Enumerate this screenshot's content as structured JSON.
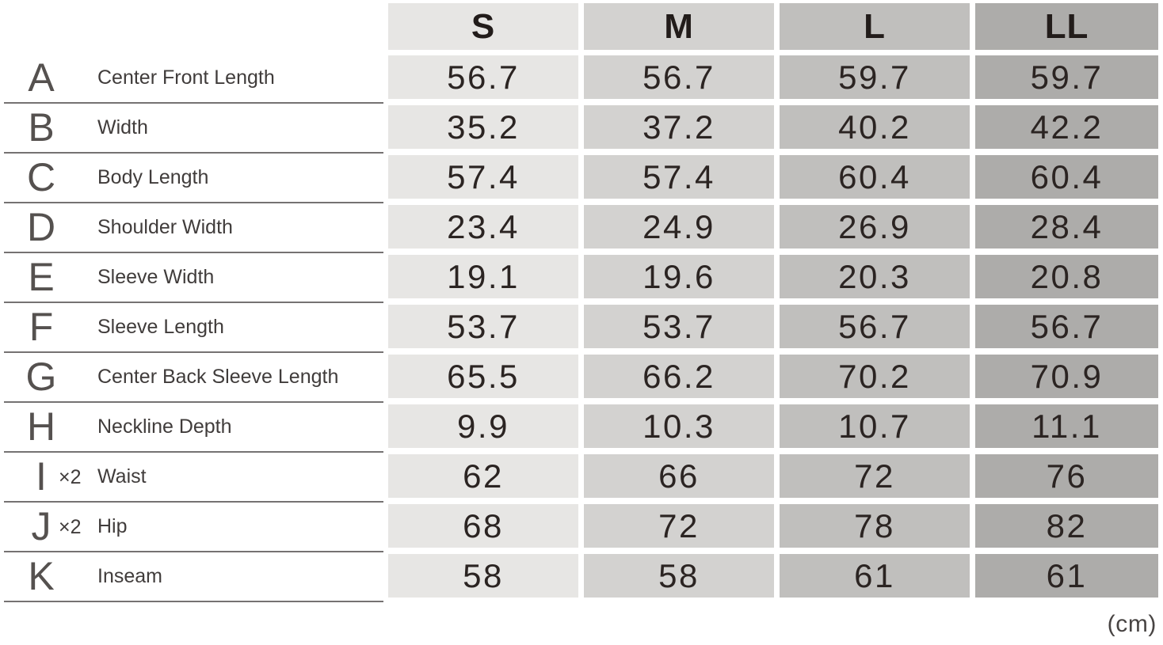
{
  "unit_label": "(cm)",
  "columns": [
    {
      "label": "S",
      "bg": "#e7e6e4"
    },
    {
      "label": "M",
      "bg": "#d3d2d0"
    },
    {
      "label": "L",
      "bg": "#c0bfbd"
    },
    {
      "label": "LL",
      "bg": "#adacaa"
    }
  ],
  "rows": [
    {
      "letter": "A",
      "note": "",
      "label": "Center Front Length",
      "values": [
        "56.7",
        "56.7",
        "59.7",
        "59.7"
      ]
    },
    {
      "letter": "B",
      "note": "",
      "label": "Width",
      "values": [
        "35.2",
        "37.2",
        "40.2",
        "42.2"
      ]
    },
    {
      "letter": "C",
      "note": "",
      "label": "Body Length",
      "values": [
        "57.4",
        "57.4",
        "60.4",
        "60.4"
      ]
    },
    {
      "letter": "D",
      "note": "",
      "label": "Shoulder Width",
      "values": [
        "23.4",
        "24.9",
        "26.9",
        "28.4"
      ]
    },
    {
      "letter": "E",
      "note": "",
      "label": "Sleeve Width",
      "values": [
        "19.1",
        "19.6",
        "20.3",
        "20.8"
      ]
    },
    {
      "letter": "F",
      "note": "",
      "label": "Sleeve Length",
      "values": [
        "53.7",
        "53.7",
        "56.7",
        "56.7"
      ]
    },
    {
      "letter": "G",
      "note": "",
      "label": "Center Back Sleeve Length",
      "values": [
        "65.5",
        "66.2",
        "70.2",
        "70.9"
      ]
    },
    {
      "letter": "H",
      "note": "",
      "label": "Neckline Depth",
      "values": [
        "9.9",
        "10.3",
        "10.7",
        "11.1"
      ]
    },
    {
      "letter": "I",
      "note": "×2",
      "label": "Waist",
      "values": [
        "62",
        "66",
        "72",
        "76"
      ]
    },
    {
      "letter": "J",
      "note": "×2",
      "label": "Hip",
      "values": [
        "68",
        "72",
        "78",
        "82"
      ]
    },
    {
      "letter": "K",
      "note": "",
      "label": "Inseam",
      "values": [
        "58",
        "58",
        "61",
        "61"
      ]
    }
  ],
  "colors": {
    "background": "#ffffff",
    "number_text": "#2b2422",
    "header_text": "#221c1a",
    "label_text": "#403c3b",
    "row_letter_text": "#55514f",
    "divider_line": "#757272"
  },
  "chart_data": {
    "type": "table",
    "columns": [
      "S",
      "M",
      "L",
      "LL"
    ],
    "unit": "cm",
    "rows": [
      {
        "key": "A",
        "label": "Center Front Length",
        "values": [
          56.7,
          56.7,
          59.7,
          59.7
        ]
      },
      {
        "key": "B",
        "label": "Width",
        "values": [
          35.2,
          37.2,
          40.2,
          42.2
        ]
      },
      {
        "key": "C",
        "label": "Body Length",
        "values": [
          57.4,
          57.4,
          60.4,
          60.4
        ]
      },
      {
        "key": "D",
        "label": "Shoulder Width",
        "values": [
          23.4,
          24.9,
          26.9,
          28.4
        ]
      },
      {
        "key": "E",
        "label": "Sleeve Width",
        "values": [
          19.1,
          19.6,
          20.3,
          20.8
        ]
      },
      {
        "key": "F",
        "label": "Sleeve Length",
        "values": [
          53.7,
          53.7,
          56.7,
          56.7
        ]
      },
      {
        "key": "G",
        "label": "Center Back Sleeve Length",
        "values": [
          65.5,
          66.2,
          70.2,
          70.9
        ]
      },
      {
        "key": "H",
        "label": "Neckline Depth",
        "values": [
          9.9,
          10.3,
          10.7,
          11.1
        ]
      },
      {
        "key": "I",
        "multiplier": "×2",
        "label": "Waist",
        "values": [
          62,
          66,
          72,
          76
        ]
      },
      {
        "key": "J",
        "multiplier": "×2",
        "label": "Hip",
        "values": [
          68,
          72,
          78,
          82
        ]
      },
      {
        "key": "K",
        "label": "Inseam",
        "values": [
          58,
          58,
          61,
          61
        ]
      }
    ]
  }
}
